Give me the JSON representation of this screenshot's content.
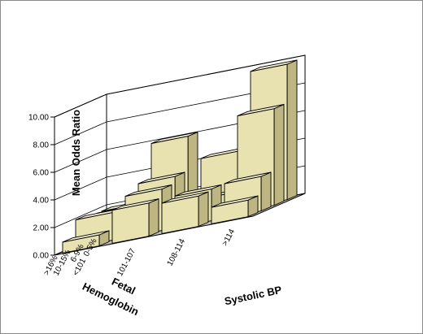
{
  "chart_data": {
    "type": "bar",
    "variant": "3d-bar-grid",
    "title": "",
    "ylabel": "Mean Odds Ratio",
    "xlabel": "Systolic BP",
    "zlabel": [
      "Fetal",
      "Hemoglobin"
    ],
    "ylim": [
      0,
      10.0
    ],
    "yticks": [
      "0.00",
      "2.00",
      "4.00",
      "6.00",
      "8.00",
      "10.00"
    ],
    "x_categories": [
      "<101",
      "101-107",
      "108-114",
      ">114"
    ],
    "z_categories": [
      "0-5%",
      "6-9%",
      "10-15%",
      ">16%"
    ],
    "values": [
      {
        "systolic": "<101",
        "fetal": "0-5%",
        "value": 1.8
      },
      {
        "systolic": "<101",
        "fetal": "6-9%",
        "value": 1.8
      },
      {
        "systolic": "<101",
        "fetal": "10-15%",
        "value": 2.0
      },
      {
        "systolic": "<101",
        "fetal": "> 16%",
        "value": 0.8
      },
      {
        "systolic": "101-107",
        "fetal": "0-5%",
        "value": 6.0
      },
      {
        "systolic": "101-107",
        "fetal": "6-9%",
        "value": 3.5
      },
      {
        "systolic": "101-107",
        "fetal": "10-15%",
        "value": 3.0
      },
      {
        "systolic": "101-107",
        "fetal": ">16%",
        "value": 2.4
      },
      {
        "systolic": "108-114",
        "fetal": "0-5%",
        "value": 4.2
      },
      {
        "systolic": "108-114",
        "fetal": "6-9%",
        "value": 1.5
      },
      {
        "systolic": "108-114",
        "fetal": "10-15%",
        "value": 2.3
      },
      {
        "systolic": "108-114",
        "fetal": ">16%",
        "value": 2.2
      },
      {
        "systolic": ">114",
        "fetal": "0-5%",
        "value": 9.8
      },
      {
        "systolic": ">114",
        "fetal": "6-9%",
        "value": 7.0
      },
      {
        "systolic": ">114",
        "fetal": "10-15%",
        "value": 2.5
      },
      {
        "systolic": ">114",
        "fetal": ">16%",
        "value": 1.2
      }
    ],
    "grid": true,
    "legend": "none"
  },
  "colors": {
    "bar_front": "#e8e2b0",
    "bar_side": "#bdb582",
    "bar_top": "#f3efd0",
    "floor": "#c0c0c0",
    "wall": "#ffffff",
    "edge": "#000000"
  }
}
